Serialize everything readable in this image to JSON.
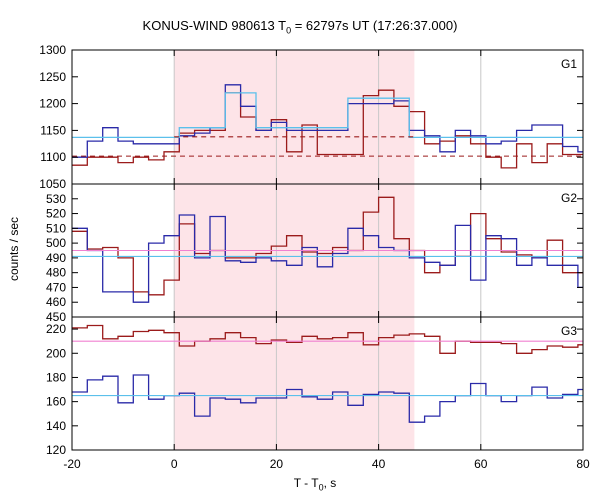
{
  "title": {
    "main": "KONUS-WIND 980613 T",
    "sub": "0",
    "rest": " = 62797s UT (17:26:37.000)"
  },
  "ylabel": "counts / sec",
  "xlabel": {
    "main": "T - T",
    "sub": "0",
    "rest": ", s"
  },
  "chart_data": {
    "type": "line",
    "style": "step histogram, three stacked panels sharing the x axis",
    "xlim": [
      -20,
      80
    ],
    "x_ticks": [
      "-20",
      "0",
      "20",
      "40",
      "60",
      "80"
    ],
    "x_tick_values": [
      -20,
      0,
      20,
      40,
      60,
      80
    ],
    "highlight_interval": [
      0,
      47
    ],
    "colors": {
      "highlight": "#fde4e8",
      "dark_red": "#9b1b1b",
      "dark_blue": "#2a2aa8",
      "light_blue": "#5bc0eb",
      "pink": "#f080d0"
    },
    "bin_edges": [
      -20,
      -17,
      -14,
      -11,
      -8,
      -5,
      -2,
      1,
      4,
      7,
      10,
      13,
      16,
      19,
      22,
      25,
      28,
      31,
      34,
      37,
      40,
      43,
      46,
      49,
      52,
      55,
      58,
      61,
      64,
      67,
      70,
      73,
      76,
      79,
      80
    ],
    "panels": [
      {
        "name": "G1",
        "ylim": [
          1050,
          1300
        ],
        "y_ticks": [
          "1050",
          "1100",
          "1150",
          "1200",
          "1250",
          "1300"
        ],
        "y_tick_values": [
          1050,
          1100,
          1150,
          1200,
          1250,
          1300
        ],
        "series": [
          {
            "color": "dark_red",
            "style": "step",
            "values": [
              1085,
              1100,
              1100,
              1090,
              1100,
              1095,
              1110,
              1145,
              1150,
              1150,
              1220,
              1175,
              1150,
              1170,
              1110,
              1160,
              1105,
              1105,
              1105,
              1215,
              1225,
              1195,
              1185,
              1125,
              1130,
              1140,
              1125,
              1100,
              1080,
              1125,
              1090,
              1125,
              1105,
              1105
            ]
          },
          {
            "color": "dark_blue",
            "style": "step",
            "values": [
              1100,
              1130,
              1155,
              1130,
              1125,
              1125,
              1125,
              1140,
              1145,
              1155,
              1235,
              1195,
              1150,
              1165,
              1150,
              1150,
              1150,
              1150,
              1200,
              1200,
              1200,
              1205,
              1150,
              1140,
              1110,
              1150,
              1140,
              1125,
              1130,
              1150,
              1160,
              1160,
              1120,
              1110
            ]
          },
          {
            "color": "light_blue",
            "style": "step",
            "values": [
              1137,
              1137,
              1137,
              1137,
              1137,
              1137,
              1137,
              1155,
              1155,
              1155,
              1220,
              1220,
              1155,
              1155,
              1155,
              1155,
              1155,
              1155,
              1210,
              1210,
              1210,
              1210,
              1137,
              1137,
              1137,
              1137,
              1137,
              1137,
              1137,
              1137,
              1137,
              1137,
              1137,
              1137
            ]
          },
          {
            "color": "dark_red",
            "style": "dashed",
            "levels": [
              {
                "from": 0,
                "to": 47,
                "y": 1138
              },
              {
                "from": -20,
                "to": 80,
                "y": 1102
              }
            ]
          }
        ]
      },
      {
        "name": "G2",
        "ylim": [
          450,
          540
        ],
        "y_ticks": [
          "450",
          "460",
          "470",
          "480",
          "490",
          "500",
          "510",
          "520",
          "530"
        ],
        "y_tick_values": [
          450,
          460,
          470,
          480,
          490,
          500,
          510,
          520,
          530
        ],
        "series": [
          {
            "color": "dark_red",
            "style": "step",
            "values": [
              508,
              496,
              497,
              490,
              467,
              465,
              475,
              513,
              493,
              495,
              490,
              490,
              493,
              498,
              505,
              494,
              493,
              497,
              495,
              521,
              531,
              503,
              495,
              480,
              485,
              491,
              520,
              503,
              494,
              492,
              490,
              502,
              480,
              480
            ]
          },
          {
            "color": "dark_blue",
            "style": "step",
            "values": [
              510,
              495,
              467,
              467,
              460,
              500,
              505,
              519,
              490,
              518,
              488,
              487,
              490,
              488,
              485,
              497,
              484,
              493,
              510,
              505,
              497,
              495,
              490,
              487,
              485,
              512,
              475,
              505,
              503,
              485,
              490,
              485,
              485,
              470
            ]
          },
          {
            "color": "light_blue",
            "style": "flat",
            "y": 491
          },
          {
            "color": "pink",
            "style": "flat",
            "y": 495
          }
        ]
      },
      {
        "name": "G3",
        "ylim": [
          120,
          230
        ],
        "y_ticks": [
          "120",
          "140",
          "160",
          "180",
          "200",
          "220"
        ],
        "y_tick_values": [
          120,
          140,
          160,
          180,
          200,
          220
        ],
        "series": [
          {
            "color": "dark_red",
            "style": "step",
            "values": [
              221,
              223,
              212,
              214,
              218,
              219,
              217,
              206,
              210,
              212,
              217,
              213,
              208,
              211,
              209,
              214,
              212,
              213,
              217,
              207,
              213,
              215,
              216,
              214,
              200,
              210,
              209,
              209,
              208,
              200,
              203,
              206,
              205,
              207
            ]
          },
          {
            "color": "dark_blue",
            "style": "step",
            "values": [
              168,
              178,
              181,
              159,
              182,
              162,
              165,
              167,
              148,
              163,
              162,
              159,
              163,
              163,
              170,
              164,
              162,
              168,
              157,
              166,
              168,
              167,
              143,
              148,
              160,
              165,
              175,
              165,
              160,
              165,
              172,
              163,
              166,
              170
            ]
          },
          {
            "color": "light_blue",
            "style": "flat",
            "y": 165
          },
          {
            "color": "pink",
            "style": "flat",
            "y": 210
          }
        ]
      }
    ]
  }
}
